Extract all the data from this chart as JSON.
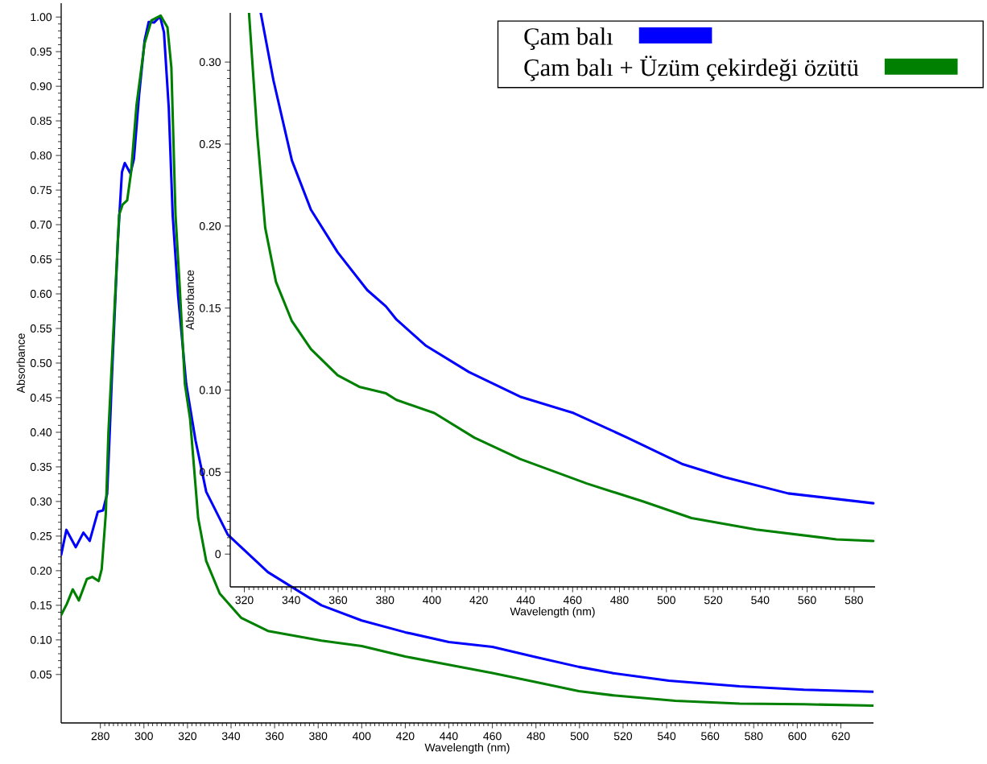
{
  "chart_data": [
    {
      "type": "line",
      "xlabel": "Wavelength (nm)",
      "ylabel": "Absorbance",
      "xlim": [
        262,
        635
      ],
      "ylim": [
        -0.02,
        1.02
      ],
      "legend": "top right",
      "marker": "none",
      "line_style": "solid",
      "xticks": [
        280,
        300,
        320,
        340,
        360,
        380,
        400,
        420,
        440,
        460,
        480,
        500,
        520,
        540,
        560,
        580,
        600,
        620
      ],
      "yticks": [
        {
          "value": 0.05,
          "label": "0.05"
        },
        {
          "value": 0.1,
          "label": "0.10"
        },
        {
          "value": 0.15,
          "label": "0.15"
        },
        {
          "value": 0.2,
          "label": "0.20"
        },
        {
          "value": 0.25,
          "label": "0.25"
        },
        {
          "value": 0.3,
          "label": "0.30"
        },
        {
          "value": 0.35,
          "label": "0.35"
        },
        {
          "value": 0.4,
          "label": "0.40"
        },
        {
          "value": 0.45,
          "label": "0.45"
        },
        {
          "value": 0.5,
          "label": "0.50"
        },
        {
          "value": 0.55,
          "label": "0.55"
        },
        {
          "value": 0.6,
          "label": "0.60"
        },
        {
          "value": 0.65,
          "label": "0.65"
        },
        {
          "value": 0.7,
          "label": "0.70"
        },
        {
          "value": 0.75,
          "label": "0.75"
        },
        {
          "value": 0.8,
          "label": "0.80"
        },
        {
          "value": 0.85,
          "label": "0.85"
        },
        {
          "value": 0.9,
          "label": "0.90"
        },
        {
          "value": 0.95,
          "label": "0.95"
        },
        {
          "value": 1.0,
          "label": "1.00"
        }
      ],
      "series": [
        {
          "name": "Çam balı",
          "color": "#0000ff",
          "x": [
            262,
            264.4,
            268.7,
            272.2,
            275.1,
            278.8,
            281.2,
            283.1,
            284.3,
            285.3,
            288,
            289.9,
            291.2,
            293.8,
            295.4,
            297.8,
            300.3,
            302.2,
            304.6,
            307.4,
            309.2,
            311.4,
            313.2,
            315.7,
            319.4,
            323.7,
            328.6,
            338.5,
            356.9,
            381.5,
            400,
            420,
            440,
            460,
            480,
            499.7,
            515.2,
            541,
            573.6,
            603,
            634.9
          ],
          "values": [
            0.223,
            0.259,
            0.234,
            0.255,
            0.243,
            0.285,
            0.287,
            0.311,
            0.4,
            0.481,
            0.675,
            0.776,
            0.789,
            0.774,
            0.795,
            0.888,
            0.966,
            0.993,
            0.992,
            1.001,
            0.978,
            0.869,
            0.714,
            0.597,
            0.47,
            0.388,
            0.314,
            0.252,
            0.198,
            0.15,
            0.128,
            0.111,
            0.097,
            0.09,
            0.075,
            0.061,
            0.052,
            0.041,
            0.033,
            0.028,
            0.025
          ]
        },
        {
          "name": "Çam balı + Üzüm çekirdeği özütü",
          "color": "#008000",
          "x": [
            262,
            264.6,
            267.3,
            270.1,
            273.8,
            276.3,
            279.2,
            280.6,
            282.5,
            283.7,
            284.9,
            288.6,
            290.2,
            292.3,
            294.1,
            296.6,
            300.3,
            303.4,
            307.7,
            310.8,
            312.6,
            314.5,
            316.3,
            318.8,
            321.2,
            324.9,
            328.6,
            334.8,
            344.6,
            356.9,
            381.5,
            400,
            420,
            440,
            460,
            480,
            499.7,
            515.2,
            544,
            573.6,
            603,
            634.9
          ],
          "values": [
            0.136,
            0.152,
            0.173,
            0.157,
            0.188,
            0.191,
            0.185,
            0.202,
            0.283,
            0.4,
            0.477,
            0.714,
            0.729,
            0.735,
            0.776,
            0.873,
            0.962,
            0.995,
            1.002,
            0.985,
            0.927,
            0.714,
            0.617,
            0.47,
            0.419,
            0.276,
            0.214,
            0.167,
            0.132,
            0.113,
            0.099,
            0.091,
            0.076,
            0.064,
            0.052,
            0.039,
            0.026,
            0.02,
            0.012,
            0.008,
            0.007,
            0.005
          ]
        }
      ]
    },
    {
      "type": "line",
      "xlabel": "Wavelength (nm)",
      "ylabel": "Absorbance",
      "xlim": [
        314,
        589
      ],
      "ylim": [
        -0.02,
        0.33
      ],
      "marker": "none",
      "line_style": "solid",
      "xticks": [
        320,
        340,
        360,
        380,
        400,
        420,
        440,
        460,
        480,
        500,
        520,
        540,
        560,
        580
      ],
      "yticks": [
        0,
        {
          "value": 0.05,
          "label": "0.05"
        },
        {
          "value": 0.1,
          "label": "0.10"
        },
        {
          "value": 0.15,
          "label": "0.15"
        },
        {
          "value": 0.2,
          "label": "0.20"
        },
        {
          "value": 0.25,
          "label": "0.25"
        },
        {
          "value": 0.3,
          "label": "0.30"
        }
      ],
      "series": [
        {
          "color": "#0000ff",
          "x": [
            327,
            332.4,
            340.3,
            348.4,
            359.8,
            372.4,
            380.4,
            384.9,
            397.5,
            415.8,
            437.6,
            460.4,
            483.3,
            506.6,
            524.5,
            551.9,
            588.3
          ],
          "values": [
            0.33,
            0.289,
            0.24,
            0.21,
            0.184,
            0.161,
            0.151,
            0.143,
            0.127,
            0.111,
            0.096,
            0.086,
            0.071,
            0.055,
            0.047,
            0.037,
            0.031
          ]
        },
        {
          "color": "#008000",
          "x": [
            322,
            325.5,
            328.9,
            333.5,
            340.3,
            348.4,
            359.8,
            369,
            380.4,
            384.9,
            401,
            418.1,
            437.6,
            466.1,
            490.2,
            510.7,
            538.2,
            572.5,
            588.3
          ],
          "values": [
            0.33,
            0.256,
            0.199,
            0.166,
            0.142,
            0.125,
            0.109,
            0.102,
            0.098,
            0.094,
            0.086,
            0.071,
            0.058,
            0.043,
            0.032,
            0.022,
            0.015,
            0.009,
            0.008
          ]
        }
      ]
    }
  ]
}
